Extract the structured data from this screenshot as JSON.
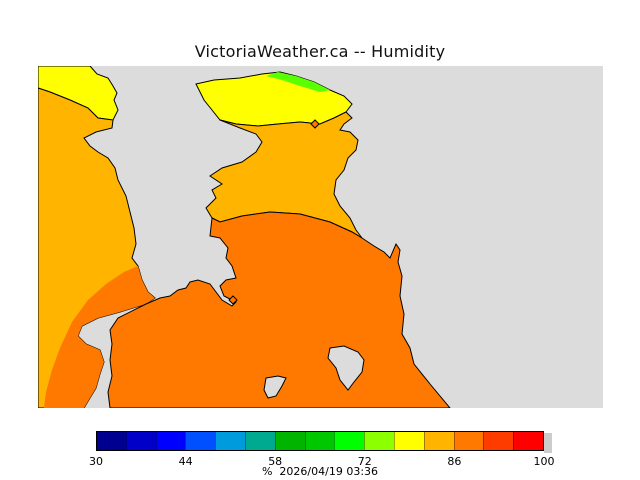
{
  "title": "VictoriaWeather.ca -- Humidity",
  "map": {
    "background_color": "#dcdcdc",
    "regions": [
      {
        "name": "humidity-band-86-93",
        "color": "#ffb400"
      },
      {
        "name": "humidity-band-79-86",
        "color": "#ffff00"
      },
      {
        "name": "humidity-band-93-100",
        "color": "#ff7800"
      },
      {
        "name": "humidity-band-72-79",
        "color": "#5aff00"
      }
    ],
    "station_markers": 2
  },
  "colorbar": {
    "colors": [
      "#000090",
      "#0000c8",
      "#0000ff",
      "#0050ff",
      "#009bdc",
      "#00aa91",
      "#00b400",
      "#00c800",
      "#00ff00",
      "#8cff00",
      "#ffff00",
      "#ffb400",
      "#ff7800",
      "#ff3c00",
      "#ff0000"
    ],
    "tick_labels": [
      "30",
      "44",
      "58",
      "72",
      "86",
      "100"
    ],
    "units": "%",
    "timestamp": "2026/04/19 03:36"
  }
}
